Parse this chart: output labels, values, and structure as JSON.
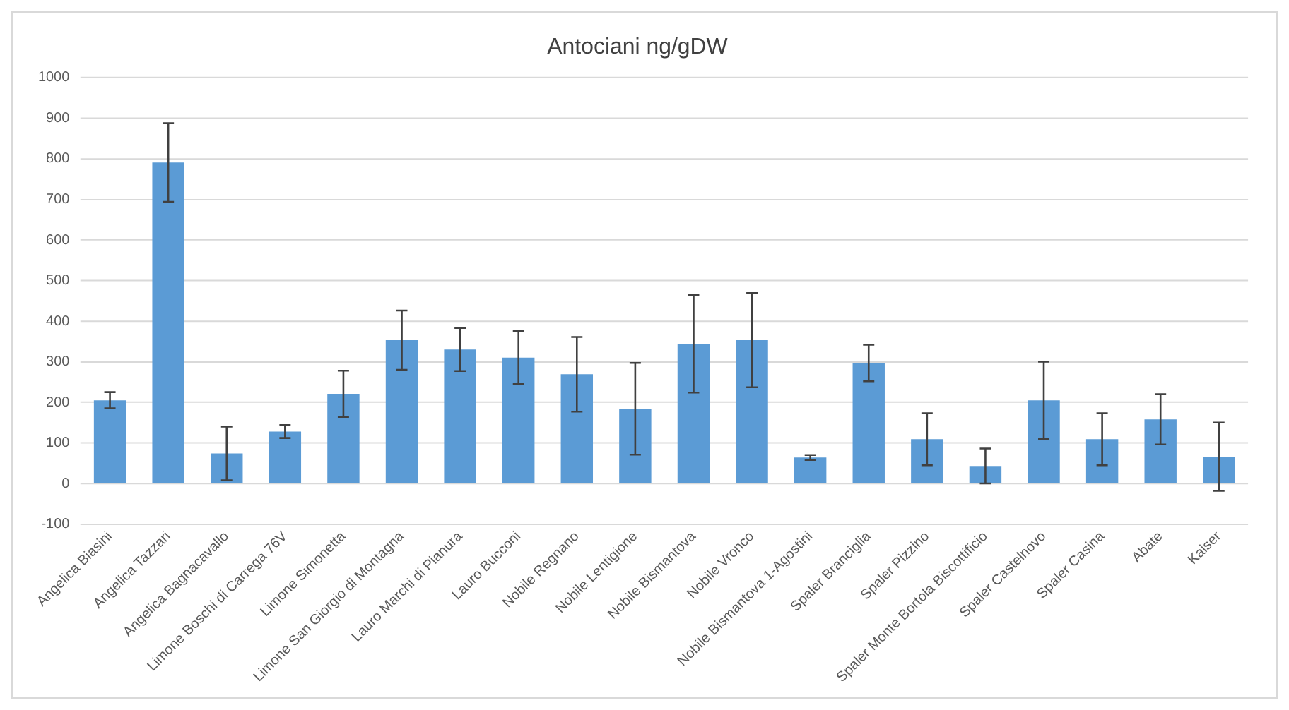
{
  "chart_data": {
    "type": "bar",
    "title": "Antociani ng/gDW",
    "categories": [
      "Angelica Biasini",
      "Angelica Tazzari",
      "Angelica Bagnacavallo",
      "Limone Boschi di Carrega 76V",
      "Limone Simonetta",
      "Limone San Giorgio di Montagna",
      "Lauro Marchi di Pianura",
      "Lauro Bucconi",
      "Nobile Regnano",
      "Nobile Lentigione",
      "Nobile Bismantova",
      "Nobile Vronco",
      "Nobile Bismantova 1-Agostini",
      "Spaler Branciglia",
      "Spaler Pizzino",
      "Spaler Monte Bortola Biscottificio",
      "Spaler Castelnovo",
      "Spaler Casina",
      "Abate",
      "Kaiser"
    ],
    "values": [
      205,
      791,
      74,
      128,
      221,
      353,
      330,
      310,
      269,
      184,
      344,
      353,
      64,
      297,
      109,
      43,
      205,
      109,
      158,
      66
    ],
    "errors": [
      20,
      97,
      66,
      16,
      57,
      73,
      53,
      65,
      92,
      113,
      120,
      116,
      6,
      45,
      64,
      43,
      95,
      64,
      62,
      84
    ],
    "color": "#5b9bd5",
    "ylim": [
      -100,
      1000
    ],
    "yticks": [
      -100,
      0,
      100,
      200,
      300,
      400,
      500,
      600,
      700,
      800,
      900,
      1000
    ],
    "grid": "y",
    "legend": false
  }
}
